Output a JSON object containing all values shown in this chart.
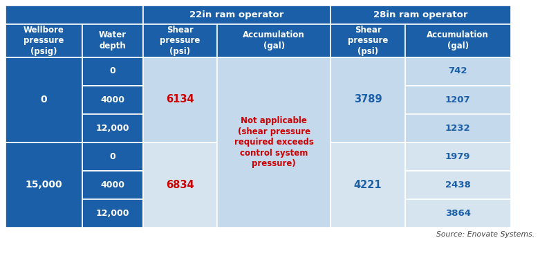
{
  "source": "Source: Enovate Systems.",
  "dark_blue": "#1A5FA8",
  "light_blue_1": "#C5D9ED",
  "light_blue_2": "#D6E4F0",
  "white": "#FFFFFF",
  "red": "#CC0000",
  "col_headers": [
    "Wellbore\npressure\n(psig)",
    "Water\ndepth",
    "Shear\npressure\n(psi)",
    "Accumulation\n(gal)",
    "Shear\npressure\n(psi)",
    "Accumulation\n(gal)"
  ],
  "na_text": "Not applicable\n(shear pressure\nrequired exceeds\ncontrol system\npressure)",
  "water_depths": [
    "0",
    "4000",
    "12,000",
    "0",
    "4000",
    "12,000"
  ],
  "accum28_vals": [
    "742",
    "1207",
    "1232",
    "1979",
    "2438",
    "3864"
  ]
}
